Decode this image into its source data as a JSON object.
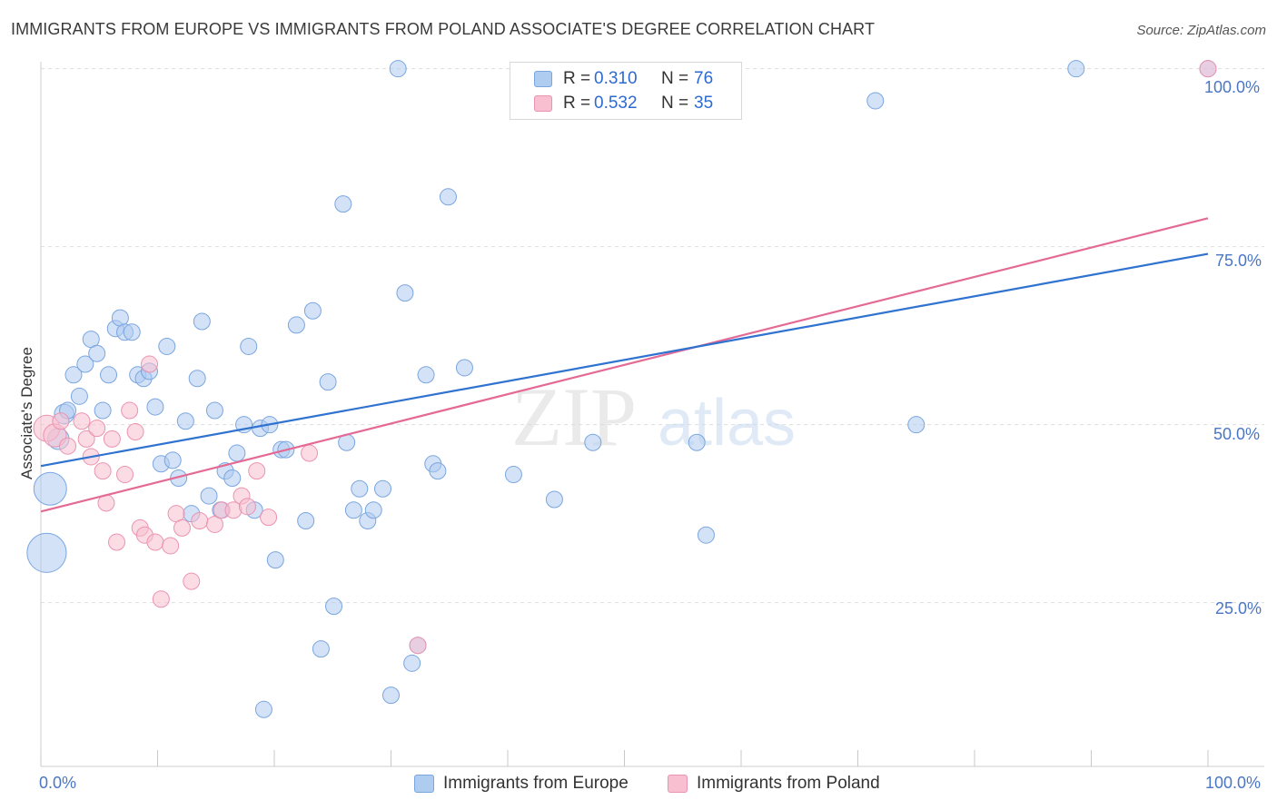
{
  "title": "IMMIGRANTS FROM EUROPE VS IMMIGRANTS FROM POLAND ASSOCIATE'S DEGREE CORRELATION CHART",
  "source": "Source: ZipAtlas.com",
  "watermark": {
    "zip": "ZIP",
    "atlas": "atlas"
  },
  "legend": {
    "europe": {
      "r_label": "R = ",
      "r_value": "0.310",
      "n_label": "N = ",
      "n_value": "76"
    },
    "poland": {
      "r_label": "R = ",
      "r_value": "0.532",
      "n_label": "N = ",
      "n_value": "35"
    }
  },
  "colors": {
    "europe_fill": "#aecbf0",
    "europe_stroke": "#7aa6df",
    "europe_line": "#2f72d0",
    "poland_fill": "#f7bfd0",
    "poland_stroke": "#eb93b0",
    "poland_line": "#e46a95",
    "tick_text": "#4a76c4",
    "grid": "#dddddd"
  },
  "chart_data": {
    "type": "scatter",
    "title": "IMMIGRANTS FROM EUROPE VS IMMIGRANTS FROM POLAND ASSOCIATE'S DEGREE CORRELATION CHART",
    "xlabel": "",
    "ylabel": "Associate's Degree",
    "xlim": [
      0,
      100
    ],
    "ylim": [
      2,
      102
    ],
    "x_tick_labels": [
      "0.0%",
      "100.0%"
    ],
    "y_tick_labels": [
      {
        "value": 25,
        "label": "25.0%"
      },
      {
        "value": 50,
        "label": "50.0%"
      },
      {
        "value": 75,
        "label": "75.0%"
      },
      {
        "value": 100,
        "label": "100.0%"
      }
    ],
    "series": [
      {
        "name": "Immigrants from Europe",
        "trend": {
          "x": [
            0,
            100
          ],
          "y": [
            44.2,
            74.0
          ]
        },
        "points": [
          {
            "x": 0.5,
            "y": 32,
            "s": 2.4
          },
          {
            "x": 0.8,
            "y": 41,
            "s": 2.0
          },
          {
            "x": 1.5,
            "y": 48,
            "s": 1.3
          },
          {
            "x": 2.0,
            "y": 51.5,
            "s": 1.2
          },
          {
            "x": 2.3,
            "y": 52,
            "s": 1.0
          },
          {
            "x": 2.8,
            "y": 57,
            "s": 1.0
          },
          {
            "x": 3.3,
            "y": 54,
            "s": 1.0
          },
          {
            "x": 3.8,
            "y": 58.5,
            "s": 1.0
          },
          {
            "x": 4.3,
            "y": 62,
            "s": 1.0
          },
          {
            "x": 4.8,
            "y": 60,
            "s": 1.0
          },
          {
            "x": 5.3,
            "y": 52,
            "s": 1.0
          },
          {
            "x": 5.8,
            "y": 57,
            "s": 1.0
          },
          {
            "x": 6.4,
            "y": 63.5,
            "s": 1.0
          },
          {
            "x": 6.8,
            "y": 65,
            "s": 1.0
          },
          {
            "x": 7.2,
            "y": 63,
            "s": 1.0
          },
          {
            "x": 7.8,
            "y": 63,
            "s": 1.0
          },
          {
            "x": 8.3,
            "y": 57,
            "s": 1.0
          },
          {
            "x": 8.8,
            "y": 56.5,
            "s": 1.0
          },
          {
            "x": 9.3,
            "y": 57.5,
            "s": 1.0
          },
          {
            "x": 9.8,
            "y": 52.5,
            "s": 1.0
          },
          {
            "x": 10.3,
            "y": 44.5,
            "s": 1.0
          },
          {
            "x": 10.8,
            "y": 61,
            "s": 1.0
          },
          {
            "x": 11.3,
            "y": 45,
            "s": 1.0
          },
          {
            "x": 11.8,
            "y": 42.5,
            "s": 1.0
          },
          {
            "x": 12.4,
            "y": 50.5,
            "s": 1.0
          },
          {
            "x": 12.9,
            "y": 37.5,
            "s": 1.0
          },
          {
            "x": 13.4,
            "y": 56.5,
            "s": 1.0
          },
          {
            "x": 13.8,
            "y": 64.5,
            "s": 1.0
          },
          {
            "x": 14.4,
            "y": 40,
            "s": 1.0
          },
          {
            "x": 14.9,
            "y": 52,
            "s": 1.0
          },
          {
            "x": 15.4,
            "y": 38,
            "s": 1.0
          },
          {
            "x": 15.8,
            "y": 43.5,
            "s": 1.0
          },
          {
            "x": 16.4,
            "y": 42.5,
            "s": 1.0
          },
          {
            "x": 16.8,
            "y": 46,
            "s": 1.0
          },
          {
            "x": 17.4,
            "y": 50,
            "s": 1.0
          },
          {
            "x": 17.8,
            "y": 61,
            "s": 1.0
          },
          {
            "x": 18.3,
            "y": 38,
            "s": 1.0
          },
          {
            "x": 18.8,
            "y": 49.5,
            "s": 1.0
          },
          {
            "x": 19.1,
            "y": 10,
            "s": 1.0
          },
          {
            "x": 19.6,
            "y": 50,
            "s": 1.0
          },
          {
            "x": 20.1,
            "y": 31,
            "s": 1.0
          },
          {
            "x": 20.6,
            "y": 46.5,
            "s": 1.0
          },
          {
            "x": 21.0,
            "y": 46.5,
            "s": 1.0
          },
          {
            "x": 21.9,
            "y": 64,
            "s": 1.0
          },
          {
            "x": 22.7,
            "y": 36.5,
            "s": 1.0
          },
          {
            "x": 23.3,
            "y": 66,
            "s": 1.0
          },
          {
            "x": 24.0,
            "y": 18.5,
            "s": 1.0
          },
          {
            "x": 24.6,
            "y": 56,
            "s": 1.0
          },
          {
            "x": 25.1,
            "y": 24.5,
            "s": 1.0
          },
          {
            "x": 25.9,
            "y": 81,
            "s": 1.0
          },
          {
            "x": 26.2,
            "y": 47.5,
            "s": 1.0
          },
          {
            "x": 26.8,
            "y": 38,
            "s": 1.0
          },
          {
            "x": 27.3,
            "y": 41,
            "s": 1.0
          },
          {
            "x": 28.0,
            "y": 36.5,
            "s": 1.0
          },
          {
            "x": 28.5,
            "y": 38,
            "s": 1.0
          },
          {
            "x": 29.3,
            "y": 41,
            "s": 1.0
          },
          {
            "x": 30.0,
            "y": 12,
            "s": 1.0
          },
          {
            "x": 30.6,
            "y": 100,
            "s": 1.0
          },
          {
            "x": 31.2,
            "y": 68.5,
            "s": 1.0
          },
          {
            "x": 31.8,
            "y": 16.5,
            "s": 1.0
          },
          {
            "x": 32.3,
            "y": 19,
            "s": 1.0
          },
          {
            "x": 33.0,
            "y": 57,
            "s": 1.0
          },
          {
            "x": 33.6,
            "y": 44.5,
            "s": 1.0
          },
          {
            "x": 34.0,
            "y": 43.5,
            "s": 1.0
          },
          {
            "x": 34.9,
            "y": 82,
            "s": 1.0
          },
          {
            "x": 36.3,
            "y": 58,
            "s": 1.0
          },
          {
            "x": 40.5,
            "y": 43,
            "s": 1.0
          },
          {
            "x": 44.0,
            "y": 39.5,
            "s": 1.0
          },
          {
            "x": 47.3,
            "y": 47.5,
            "s": 1.0
          },
          {
            "x": 56.2,
            "y": 47.5,
            "s": 1.0
          },
          {
            "x": 57.0,
            "y": 34.5,
            "s": 1.0
          },
          {
            "x": 71.5,
            "y": 95.5,
            "s": 1.0
          },
          {
            "x": 75.0,
            "y": 50,
            "s": 1.0
          },
          {
            "x": 88.7,
            "y": 100,
            "s": 1.0
          },
          {
            "x": 100,
            "y": 100,
            "s": 1.0
          }
        ]
      },
      {
        "name": "Immigrants from Poland",
        "trend": {
          "x": [
            0,
            100
          ],
          "y": [
            37.8,
            79.0
          ]
        },
        "points": [
          {
            "x": 0.5,
            "y": 49.5,
            "s": 1.6
          },
          {
            "x": 1.2,
            "y": 48.5,
            "s": 1.4
          },
          {
            "x": 1.7,
            "y": 50.5,
            "s": 1.0
          },
          {
            "x": 2.3,
            "y": 47,
            "s": 1.0
          },
          {
            "x": 3.5,
            "y": 50.5,
            "s": 1.0
          },
          {
            "x": 3.9,
            "y": 48,
            "s": 1.0
          },
          {
            "x": 4.3,
            "y": 45.5,
            "s": 1.0
          },
          {
            "x": 4.8,
            "y": 49.5,
            "s": 1.0
          },
          {
            "x": 5.3,
            "y": 43.5,
            "s": 1.0
          },
          {
            "x": 5.6,
            "y": 39,
            "s": 1.0
          },
          {
            "x": 6.1,
            "y": 48,
            "s": 1.0
          },
          {
            "x": 6.5,
            "y": 33.5,
            "s": 1.0
          },
          {
            "x": 7.2,
            "y": 43,
            "s": 1.0
          },
          {
            "x": 7.6,
            "y": 52,
            "s": 1.0
          },
          {
            "x": 8.1,
            "y": 49,
            "s": 1.0
          },
          {
            "x": 8.5,
            "y": 35.5,
            "s": 1.0
          },
          {
            "x": 8.9,
            "y": 34.5,
            "s": 1.0
          },
          {
            "x": 9.3,
            "y": 58.5,
            "s": 1.0
          },
          {
            "x": 9.8,
            "y": 33.5,
            "s": 1.0
          },
          {
            "x": 10.3,
            "y": 25.5,
            "s": 1.0
          },
          {
            "x": 11.1,
            "y": 33,
            "s": 1.0
          },
          {
            "x": 11.6,
            "y": 37.5,
            "s": 1.0
          },
          {
            "x": 12.1,
            "y": 35.5,
            "s": 1.0
          },
          {
            "x": 12.9,
            "y": 28,
            "s": 1.0
          },
          {
            "x": 13.6,
            "y": 36.5,
            "s": 1.0
          },
          {
            "x": 14.9,
            "y": 36,
            "s": 1.0
          },
          {
            "x": 15.5,
            "y": 38,
            "s": 1.0
          },
          {
            "x": 16.5,
            "y": 38,
            "s": 1.0
          },
          {
            "x": 17.2,
            "y": 40,
            "s": 1.0
          },
          {
            "x": 17.7,
            "y": 38.5,
            "s": 1.0
          },
          {
            "x": 18.5,
            "y": 43.5,
            "s": 1.0
          },
          {
            "x": 19.5,
            "y": 37,
            "s": 1.0
          },
          {
            "x": 23.0,
            "y": 46,
            "s": 1.0
          },
          {
            "x": 32.3,
            "y": 19,
            "s": 1.0
          },
          {
            "x": 100,
            "y": 100,
            "s": 1.0
          }
        ]
      }
    ]
  }
}
